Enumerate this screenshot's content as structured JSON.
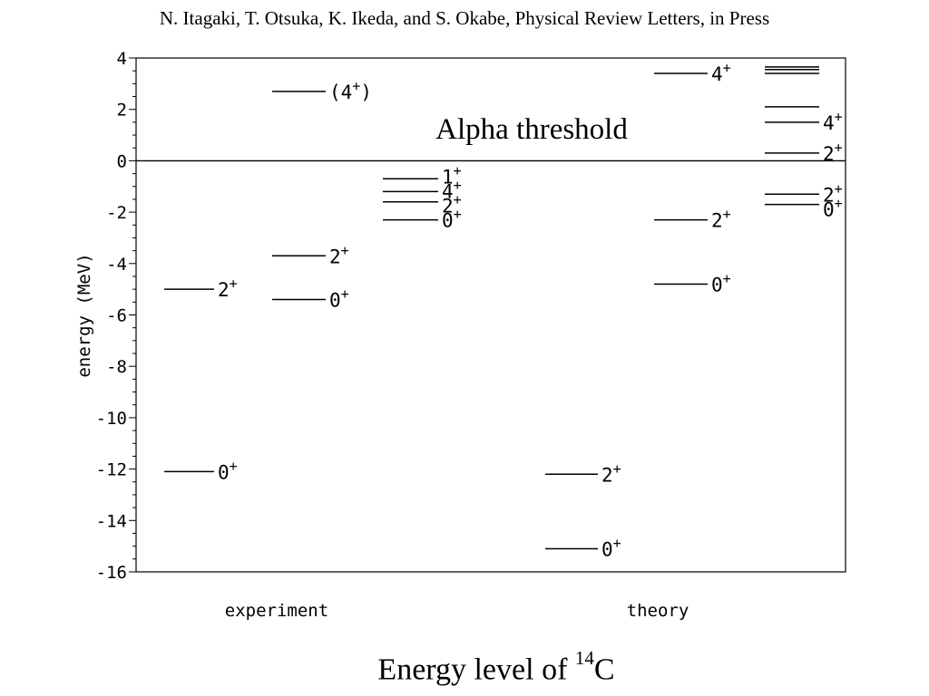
{
  "header": {
    "citation": "N. Itagaki, T. Otsuka, K. Ikeda, and S. Okabe, Physical Review Letters, in Press"
  },
  "caption": {
    "text": "Energy level of ",
    "superscript": "14",
    "element": "C"
  },
  "chart_data": {
    "type": "level-diagram",
    "ylabel": "energy (MeV)",
    "ylim": [
      -16,
      4
    ],
    "yticks": [
      "4",
      "2",
      "0",
      "-2",
      "-4",
      "-6",
      "-8",
      "-10",
      "-12",
      "-14",
      "-16"
    ],
    "ytick_values": [
      4,
      2,
      0,
      -2,
      -4,
      -6,
      -8,
      -10,
      -12,
      -14,
      -16
    ],
    "threshold": {
      "value": 0,
      "label": "Alpha threshold"
    },
    "groups": [
      {
        "label": "experiment",
        "columns": [
          {
            "levels": [
              {
                "energy": -12.1,
                "label": "0+"
              },
              {
                "energy": -5.0,
                "label": "2+"
              }
            ]
          },
          {
            "levels": [
              {
                "energy": -5.4,
                "label": "0+"
              },
              {
                "energy": -3.7,
                "label": "2+"
              },
              {
                "energy": 2.7,
                "label": "(4+)"
              }
            ]
          },
          {
            "levels": [
              {
                "energy": -2.3,
                "label": "0+"
              },
              {
                "energy": -1.6,
                "label": "2+"
              },
              {
                "energy": -1.2,
                "label": "4+"
              },
              {
                "energy": -0.7,
                "label": "1+"
              }
            ]
          }
        ]
      },
      {
        "label": "theory",
        "columns": [
          {
            "levels": [
              {
                "energy": -15.1,
                "label": "0+"
              },
              {
                "energy": -12.2,
                "label": "2+"
              }
            ]
          },
          {
            "levels": [
              {
                "energy": -4.8,
                "label": "0+"
              },
              {
                "energy": -2.3,
                "label": "2+"
              },
              {
                "energy": 3.4,
                "label": "4+"
              }
            ]
          },
          {
            "levels": [
              {
                "energy": -1.7,
                "label": "0+"
              },
              {
                "energy": -1.3,
                "label": "2+"
              },
              {
                "energy": 0.3,
                "label": "2+"
              },
              {
                "energy": 1.5,
                "label": "4+"
              },
              {
                "energy": 2.1,
                "label": ""
              },
              {
                "energy": 3.4,
                "label": ""
              },
              {
                "energy": 3.55,
                "label": ""
              },
              {
                "energy": 3.65,
                "label": ""
              }
            ]
          }
        ]
      }
    ]
  }
}
